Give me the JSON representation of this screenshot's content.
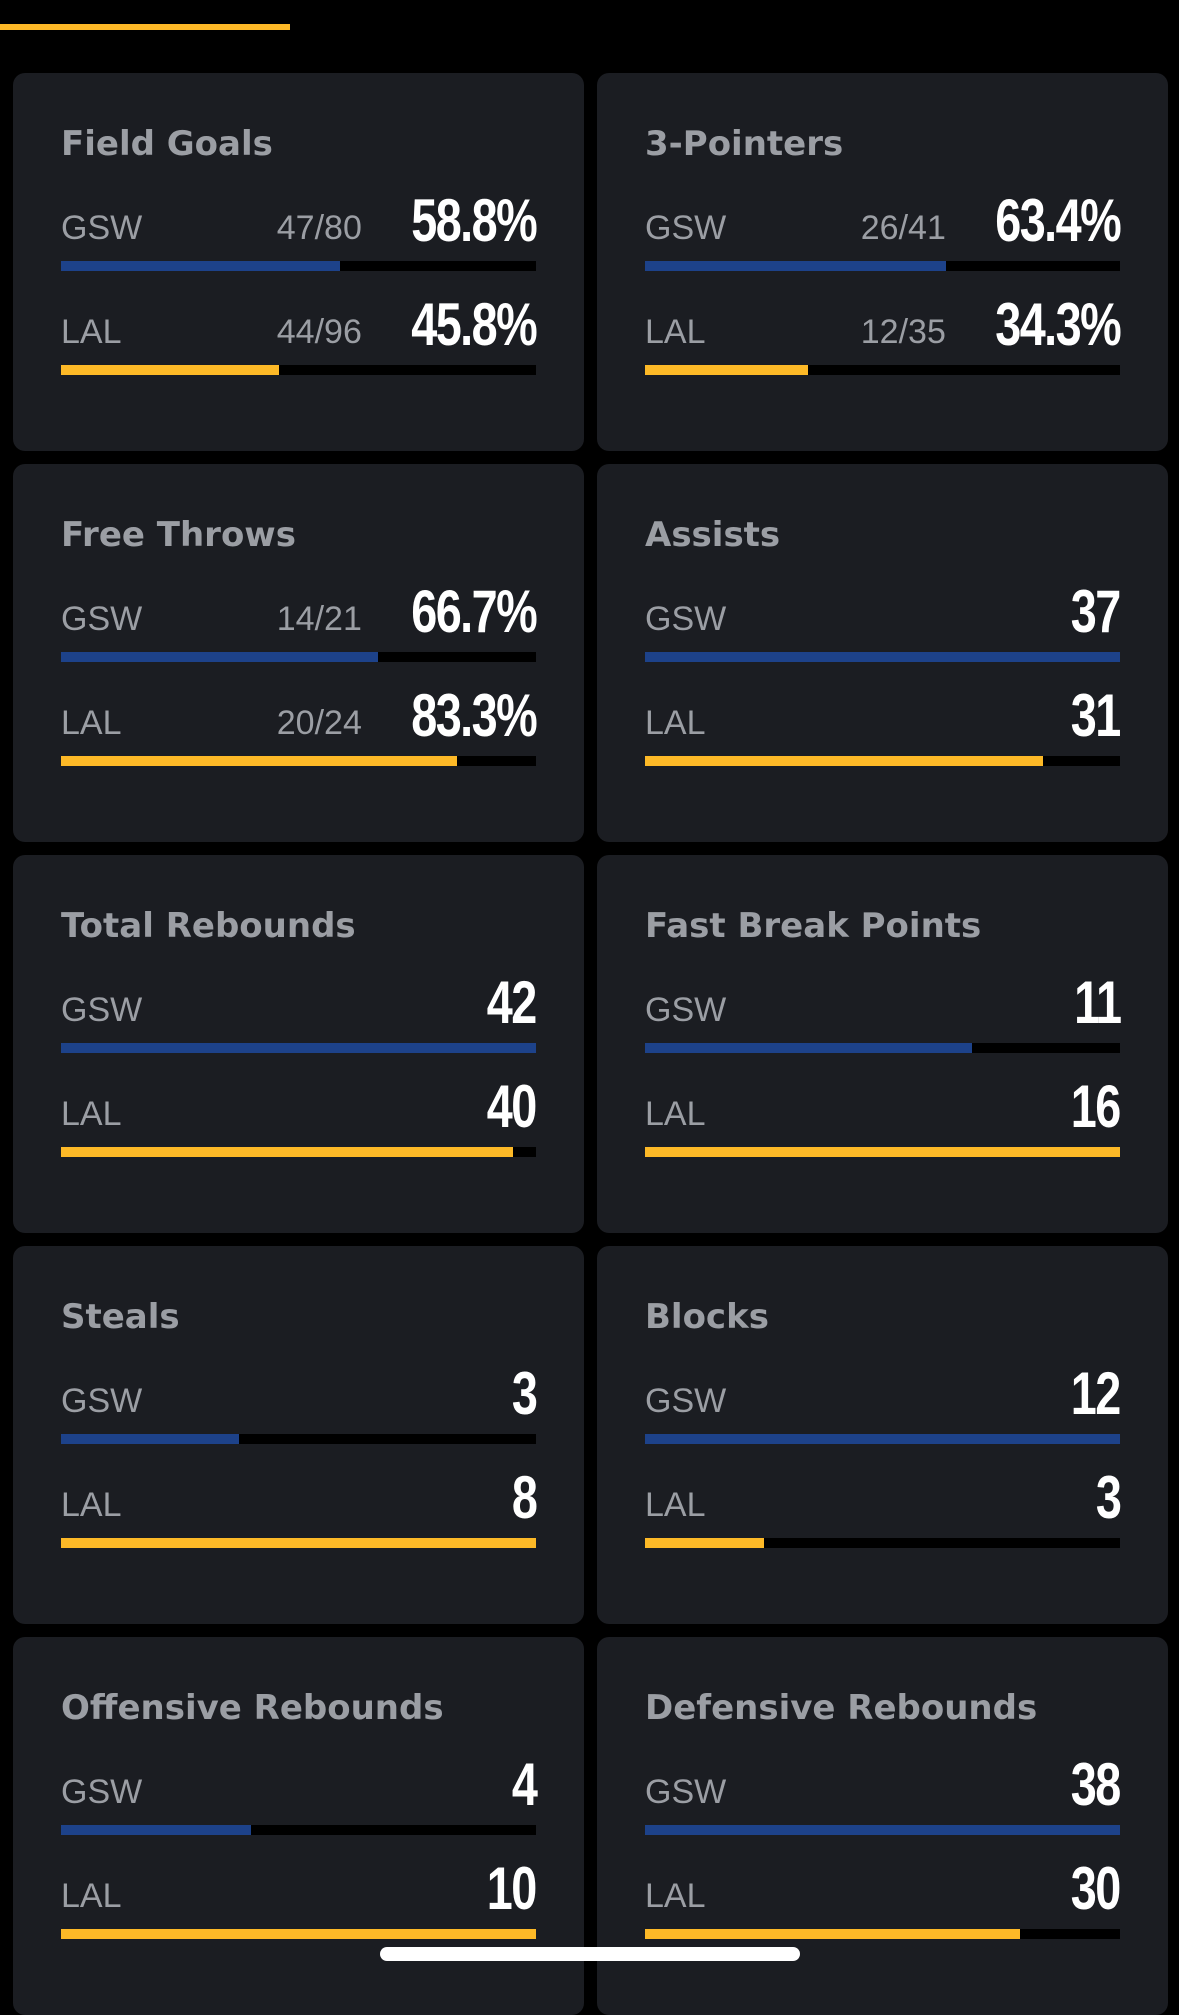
{
  "colors": {
    "background": "#000000",
    "card": "#1b1d22",
    "gsw": "#1D428A",
    "lal": "#FDB927",
    "label": "#9b9ea4",
    "value": "#ffffff"
  },
  "stats": [
    {
      "title": "Field Goals",
      "rows": [
        {
          "team": "GSW",
          "made": "47/80",
          "value": "58.8%",
          "fill": 0.588,
          "color": "gsw"
        },
        {
          "team": "LAL",
          "made": "44/96",
          "value": "45.8%",
          "fill": 0.458,
          "color": "lal"
        }
      ]
    },
    {
      "title": "3-Pointers",
      "rows": [
        {
          "team": "GSW",
          "made": "26/41",
          "value": "63.4%",
          "fill": 0.634,
          "color": "gsw"
        },
        {
          "team": "LAL",
          "made": "12/35",
          "value": "34.3%",
          "fill": 0.343,
          "color": "lal"
        }
      ]
    },
    {
      "title": "Free Throws",
      "rows": [
        {
          "team": "GSW",
          "made": "14/21",
          "value": "66.7%",
          "fill": 0.667,
          "color": "gsw"
        },
        {
          "team": "LAL",
          "made": "20/24",
          "value": "83.3%",
          "fill": 0.833,
          "color": "lal"
        }
      ]
    },
    {
      "title": "Assists",
      "rows": [
        {
          "team": "GSW",
          "made": "",
          "value": "37",
          "fill": 1.0,
          "color": "gsw"
        },
        {
          "team": "LAL",
          "made": "",
          "value": "31",
          "fill": 0.838,
          "color": "lal"
        }
      ]
    },
    {
      "title": "Total Rebounds",
      "rows": [
        {
          "team": "GSW",
          "made": "",
          "value": "42",
          "fill": 1.0,
          "color": "gsw"
        },
        {
          "team": "LAL",
          "made": "",
          "value": "40",
          "fill": 0.952,
          "color": "lal"
        }
      ]
    },
    {
      "title": "Fast Break Points",
      "rows": [
        {
          "team": "GSW",
          "made": "",
          "value": "11",
          "fill": 0.6875,
          "color": "gsw"
        },
        {
          "team": "LAL",
          "made": "",
          "value": "16",
          "fill": 1.0,
          "color": "lal"
        }
      ]
    },
    {
      "title": "Steals",
      "rows": [
        {
          "team": "GSW",
          "made": "",
          "value": "3",
          "fill": 0.375,
          "color": "gsw"
        },
        {
          "team": "LAL",
          "made": "",
          "value": "8",
          "fill": 1.0,
          "color": "lal"
        }
      ]
    },
    {
      "title": "Blocks",
      "rows": [
        {
          "team": "GSW",
          "made": "",
          "value": "12",
          "fill": 1.0,
          "color": "gsw"
        },
        {
          "team": "LAL",
          "made": "",
          "value": "3",
          "fill": 0.25,
          "color": "lal"
        }
      ]
    },
    {
      "title": "Offensive Rebounds",
      "rows": [
        {
          "team": "GSW",
          "made": "",
          "value": "4",
          "fill": 0.4,
          "color": "gsw"
        },
        {
          "team": "LAL",
          "made": "",
          "value": "10",
          "fill": 1.0,
          "color": "lal"
        }
      ]
    },
    {
      "title": "Defensive Rebounds",
      "rows": [
        {
          "team": "GSW",
          "made": "",
          "value": "38",
          "fill": 1.0,
          "color": "gsw"
        },
        {
          "team": "LAL",
          "made": "",
          "value": "30",
          "fill": 0.789,
          "color": "lal"
        }
      ]
    }
  ]
}
